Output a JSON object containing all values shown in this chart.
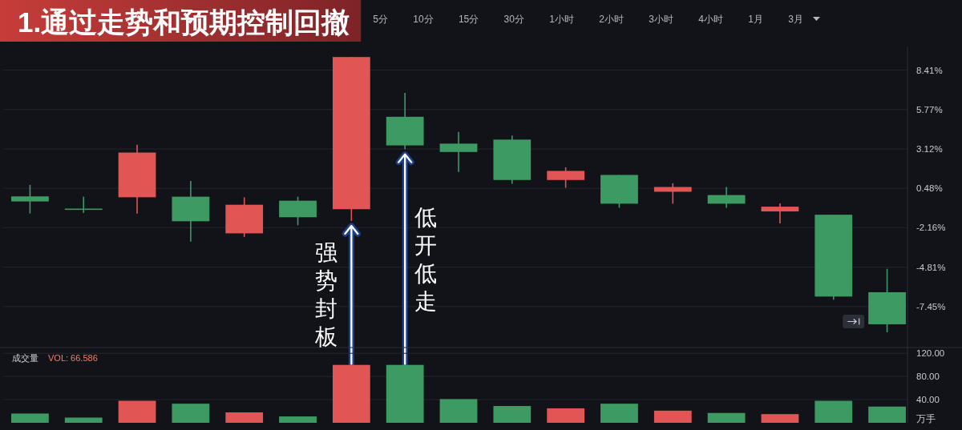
{
  "chart_data": [
    {
      "type": "candlestick",
      "title": "1.通过走势和预期控制回撤",
      "subtitle": "5分 10分 15分 30分 1小时 2小时 3小时 4小时 1月 3月",
      "categories": [
        null,
        null,
        null,
        null,
        null,
        null,
        null,
        null,
        null,
        null,
        null,
        null,
        null,
        null,
        null,
        null,
        null
      ],
      "ohlc": [
        [
          -0.06,
          0.71,
          -1.21,
          -0.4
        ],
        [
          -0.88,
          -0.08,
          -1.17,
          -0.92
        ],
        [
          -0.12,
          3.4,
          -1.21,
          2.88
        ],
        [
          -0.08,
          0.98,
          -3.09,
          -1.73
        ],
        [
          -2.54,
          -0.12,
          -2.78,
          -0.62
        ],
        [
          -0.35,
          -0.08,
          -2.0,
          -1.46
        ],
        [
          -0.92,
          9.29,
          -1.71,
          9.29
        ],
        [
          5.28,
          6.89,
          3.09,
          3.36
        ],
        [
          3.48,
          4.26,
          1.58,
          2.92
        ],
        [
          3.75,
          4.02,
          0.79,
          1.04
        ],
        [
          1.04,
          1.89,
          0.52,
          1.65
        ],
        [
          1.38,
          1.38,
          -0.82,
          -0.55
        ],
        [
          0.25,
          0.82,
          -0.55,
          0.57
        ],
        [
          0.03,
          0.57,
          -0.82,
          -0.55
        ],
        [
          -1.07,
          -0.53,
          -1.87,
          -0.75
        ],
        [
          -1.29,
          -1.29,
          -7.0,
          -6.78
        ],
        [
          -6.49,
          -4.92,
          -9.18,
          -8.64
        ]
      ],
      "colors": [
        "#3d9a62",
        "#3d9a62",
        "#e25555",
        "#3d9a62",
        "#e25555",
        "#3d9a62",
        "#e25555",
        "#3d9a62",
        "#3d9a62",
        "#3d9a62",
        "#e25555",
        "#3d9a62",
        "#e25555",
        "#3d9a62",
        "#e25555",
        "#3d9a62",
        "#3d9a62"
      ],
      "ylim": [
        -10.2,
        10.0
      ],
      "yticks": [
        {
          "value": 8.41,
          "label": "8.41%"
        },
        {
          "value": 5.77,
          "label": "5.77%"
        },
        {
          "value": 3.12,
          "label": "3.12%"
        },
        {
          "value": 0.48,
          "label": "0.48%"
        },
        {
          "value": -2.16,
          "label": "-2.16%"
        },
        {
          "value": -4.81,
          "label": "-4.81%"
        },
        {
          "value": -7.45,
          "label": "-7.45%"
        }
      ],
      "grid": "y",
      "tick_labels": "y",
      "annotations": [
        "强势封板",
        "低开低走"
      ]
    },
    {
      "type": "bar",
      "title": "成交量",
      "categories": [
        null,
        null,
        null,
        null,
        null,
        null,
        null,
        null,
        null,
        null,
        null,
        null,
        null,
        null,
        null,
        null,
        null
      ],
      "values": [
        16,
        9,
        38,
        33,
        18,
        11,
        100,
        100,
        41,
        29,
        25,
        33,
        21,
        17,
        15,
        38,
        28
      ],
      "colors": [
        "#3d9a62",
        "#3d9a62",
        "#e25555",
        "#3d9a62",
        "#e25555",
        "#3d9a62",
        "#e25555",
        "#3d9a62",
        "#3d9a62",
        "#3d9a62",
        "#e25555",
        "#3d9a62",
        "#e25555",
        "#3d9a62",
        "#e25555",
        "#3d9a62",
        "#3d9a62"
      ],
      "ylim": [
        0,
        130
      ],
      "yticks": [
        {
          "value": 40,
          "label": "40.00"
        },
        {
          "value": 80,
          "label": "80.00"
        },
        {
          "value": 120,
          "label": "120.00"
        }
      ],
      "ylabel": "万手",
      "grid": "y",
      "tick_labels": "y",
      "annotations": [
        "VOL: 66.586"
      ]
    }
  ]
}
